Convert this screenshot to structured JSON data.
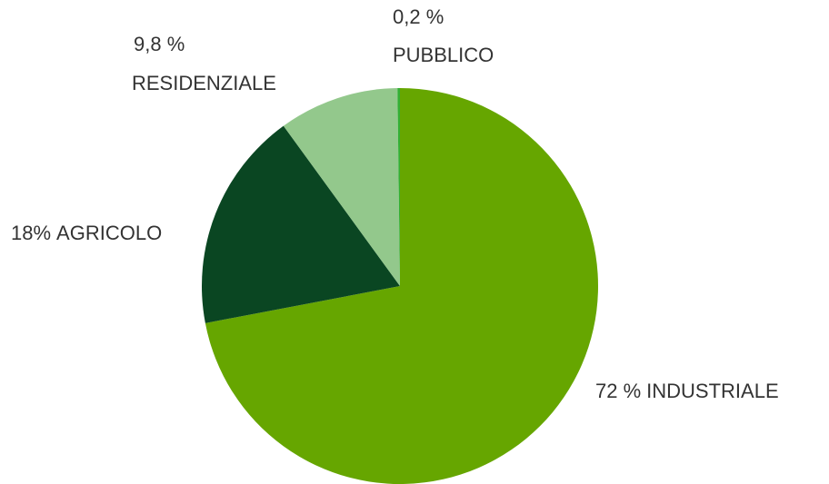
{
  "chart_data": {
    "type": "pie",
    "categories": [
      "INDUSTRIALE",
      "AGRICOLO",
      "RESIDENZIALE",
      "PUBBLICO"
    ],
    "values": [
      72,
      18,
      9.8,
      0.2
    ],
    "value_labels": [
      "72 %",
      "18%",
      "9,8 %",
      "0,2 %"
    ],
    "colors": [
      "#66a600",
      "#0a4622",
      "#93c88c",
      "#33b035"
    ]
  }
}
